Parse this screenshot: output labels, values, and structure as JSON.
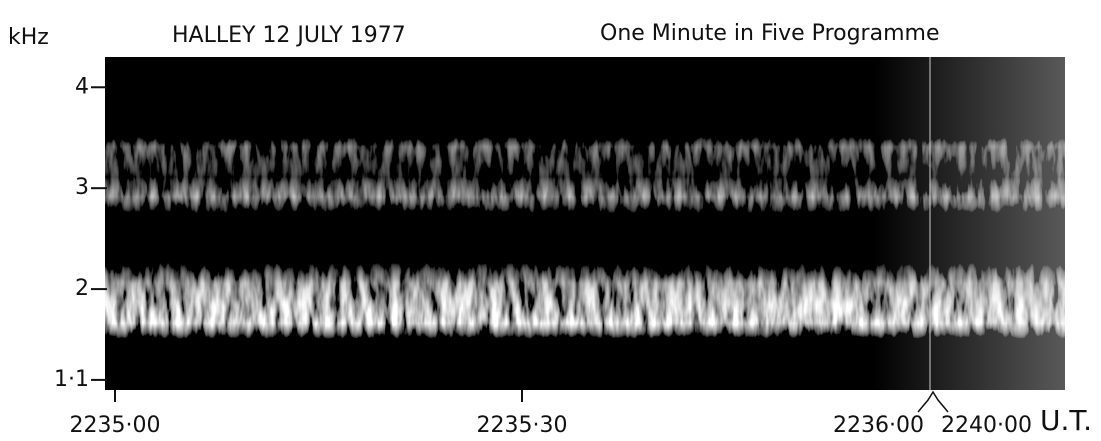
{
  "chart_data": {
    "type": "spectrogram",
    "y_unit": "kHz",
    "title": "HALLEY 12 JULY 1977",
    "subtitle": "One Minute in Five Programme",
    "ylim": [
      1.0,
      4.3
    ],
    "yticks": [
      4,
      3,
      2,
      {
        "value": 1.1,
        "label": "1·1"
      }
    ],
    "xtick_labels": [
      "2235·00",
      "2235·30",
      "2236·00",
      "2240·00"
    ],
    "x_unit": "U.T."
  }
}
